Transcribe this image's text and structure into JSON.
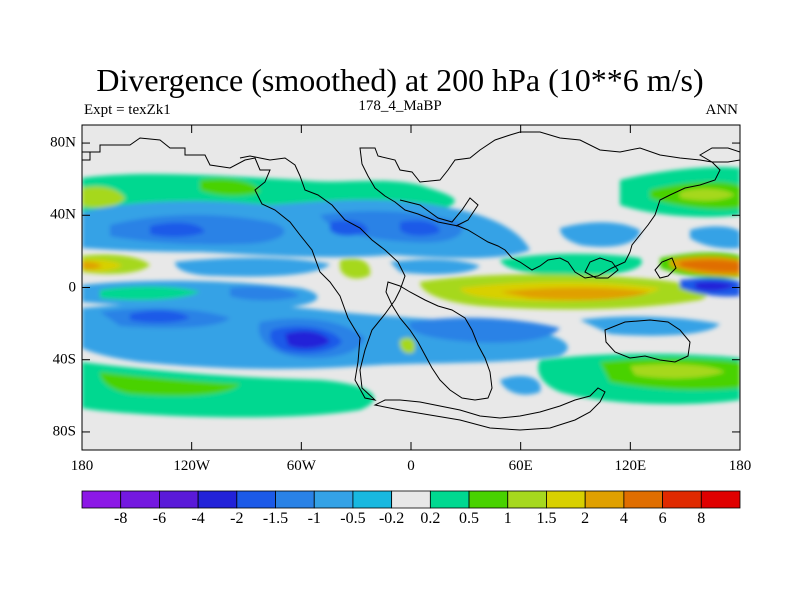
{
  "title": "Divergence (smoothed) at 200 hPa (10**6 m/s)",
  "subtitle_left": "Expt = texZk1",
  "subtitle_center": "178_4_MaBP",
  "subtitle_right": "ANN",
  "chart_data": {
    "type": "heatmap",
    "variable": "Divergence (smoothed) at 200 hPa",
    "units": "10**6 m/s",
    "x_range": [
      -180,
      180
    ],
    "y_range": [
      -90,
      90
    ],
    "x_ticks": [
      {
        "value": -180,
        "label": "180"
      },
      {
        "value": -120,
        "label": "120W"
      },
      {
        "value": -60,
        "label": "60W"
      },
      {
        "value": 0,
        "label": "0"
      },
      {
        "value": 60,
        "label": "60E"
      },
      {
        "value": 120,
        "label": "120E"
      },
      {
        "value": 180,
        "label": "180"
      }
    ],
    "y_ticks": [
      {
        "value": 80,
        "label": "80N"
      },
      {
        "value": 40,
        "label": "40N"
      },
      {
        "value": 0,
        "label": "0"
      },
      {
        "value": -40,
        "label": "40S"
      },
      {
        "value": -80,
        "label": "80S"
      }
    ],
    "contour_levels": [
      "-8",
      "-6",
      "-4",
      "-2",
      "-1.5",
      "-1",
      "-0.5",
      "-0.2",
      "0.2",
      "0.5",
      "1",
      "1.5",
      "2",
      "4",
      "6",
      "8"
    ],
    "colorbar_colors": [
      "#8c18e6",
      "#7418e0",
      "#5a1ad8",
      "#2222d8",
      "#1c5ae8",
      "#2a82e6",
      "#34a2e6",
      "#18b8e0",
      "#e8e8e8",
      "#00d890",
      "#48d200",
      "#a6d81e",
      "#d8d000",
      "#e0a000",
      "#e06e00",
      "#e02a00",
      "#e00000"
    ],
    "features": [
      {
        "name": "NH subtropical convergence band",
        "lon_range": [
          -175,
          30
        ],
        "lat_center": 32,
        "value": -1
      },
      {
        "name": "Atlantic convergence core",
        "lon": -125,
        "lat": 33,
        "value": -2
      },
      {
        "name": "N Pacific divergence band",
        "lon_range": [
          -180,
          -100
        ],
        "lat_center": 55,
        "value": 0.5
      },
      {
        "name": "Equatorial divergence strip (W)",
        "lon_range": [
          -180,
          -150
        ],
        "lat_center": 10,
        "value": 2
      },
      {
        "name": "Equatorial divergence band (E)",
        "lon_range": [
          40,
          140
        ],
        "lat_center": -5,
        "value": 2
      },
      {
        "name": "Equatorial divergence core",
        "lon": 100,
        "lat": -8,
        "value": 4
      },
      {
        "name": "W Pacific convergence core",
        "lon": 165,
        "lat": 0,
        "value": -2
      },
      {
        "name": "SH midlatitude convergence",
        "lon_range": [
          -170,
          -20
        ],
        "lat_center": -30,
        "value": -1
      },
      {
        "name": "SH convergence core",
        "lon": -62,
        "lat": -32,
        "value": -4
      },
      {
        "name": "Southern divergence band",
        "lon_range": [
          -180,
          180
        ],
        "lat_center": -62,
        "value": 0.5
      }
    ]
  }
}
